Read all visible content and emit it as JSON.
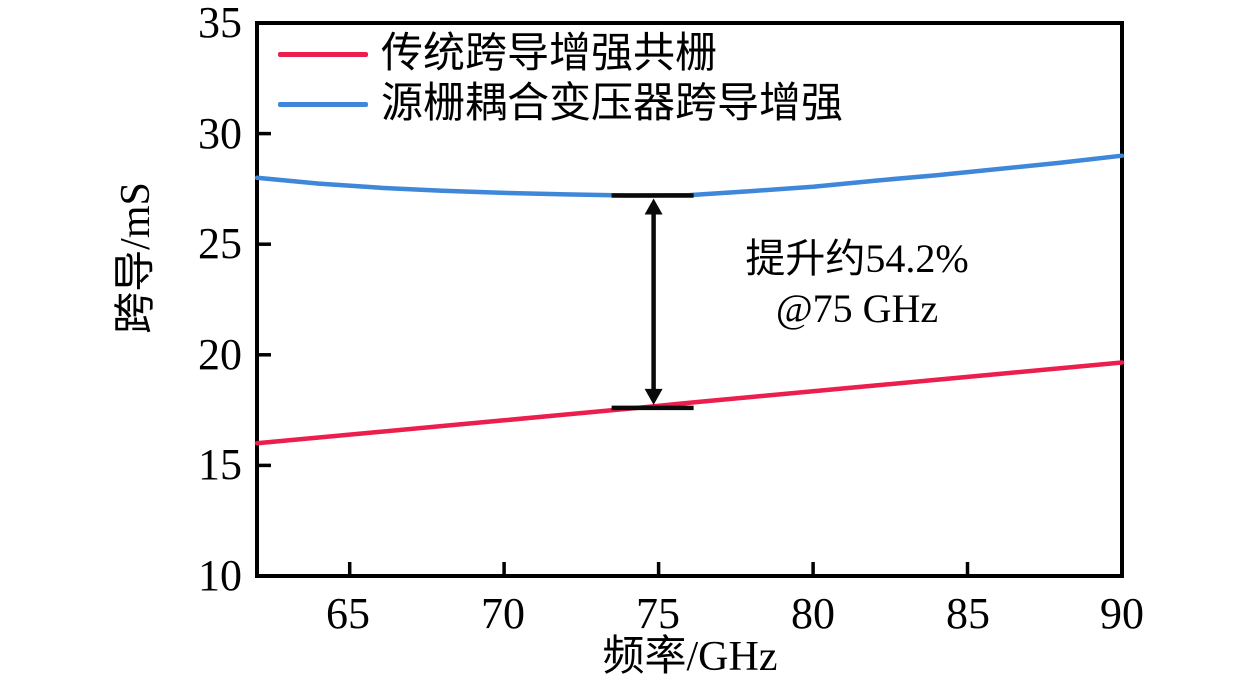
{
  "figure": {
    "y_axis_label": "跨导/mS",
    "x_axis_label": "频率/GHz",
    "y_tick_labels": [
      "35",
      "30",
      "25",
      "20",
      "15",
      "10"
    ],
    "x_tick_labels": [
      "65",
      "70",
      "75",
      "80",
      "85",
      "90"
    ],
    "legend": [
      {
        "label": "传统跨导增强共栅",
        "color": "#EB1E4E"
      },
      {
        "label": "源栅耦合变压器跨导增强",
        "color": "#3E87D9"
      }
    ],
    "annotation": {
      "line1": "提升约54.2%",
      "line2": "@75 GHz"
    },
    "colors": {
      "red_line": "#EB1E4E",
      "blue_line": "#3E87D9",
      "axis": "#000000",
      "background": "#ffffff"
    }
  },
  "chart_data": {
    "type": "line",
    "title": "",
    "xlabel": "频率/GHz",
    "ylabel": "跨导/mS",
    "xlim": [
      62,
      90
    ],
    "ylim": [
      10,
      35
    ],
    "x_ticks": [
      65,
      70,
      75,
      80,
      85,
      90
    ],
    "y_ticks": [
      10,
      15,
      20,
      25,
      30,
      35
    ],
    "grid": false,
    "legend_position": "upper left",
    "x": [
      62,
      64,
      66,
      68,
      70,
      72,
      74,
      76,
      78,
      80,
      82,
      84,
      86,
      88,
      90
    ],
    "series": [
      {
        "name": "传统跨导增强共栅",
        "color": "#EB1E4E",
        "values": [
          16.0,
          16.26,
          16.52,
          16.78,
          17.04,
          17.3,
          17.56,
          17.83,
          18.09,
          18.35,
          18.61,
          18.87,
          19.13,
          19.39,
          19.65
        ]
      },
      {
        "name": "源栅耦合变压器跨导增强",
        "color": "#3E87D9",
        "values": [
          28.0,
          27.74,
          27.55,
          27.42,
          27.32,
          27.25,
          27.2,
          27.22,
          27.4,
          27.6,
          27.87,
          28.12,
          28.4,
          28.68,
          29.0
        ]
      }
    ],
    "annotation": {
      "text": "提升约54.2% @75 GHz",
      "at_x": 75,
      "arrow_from": 17.6,
      "arrow_to": 27.2
    }
  }
}
